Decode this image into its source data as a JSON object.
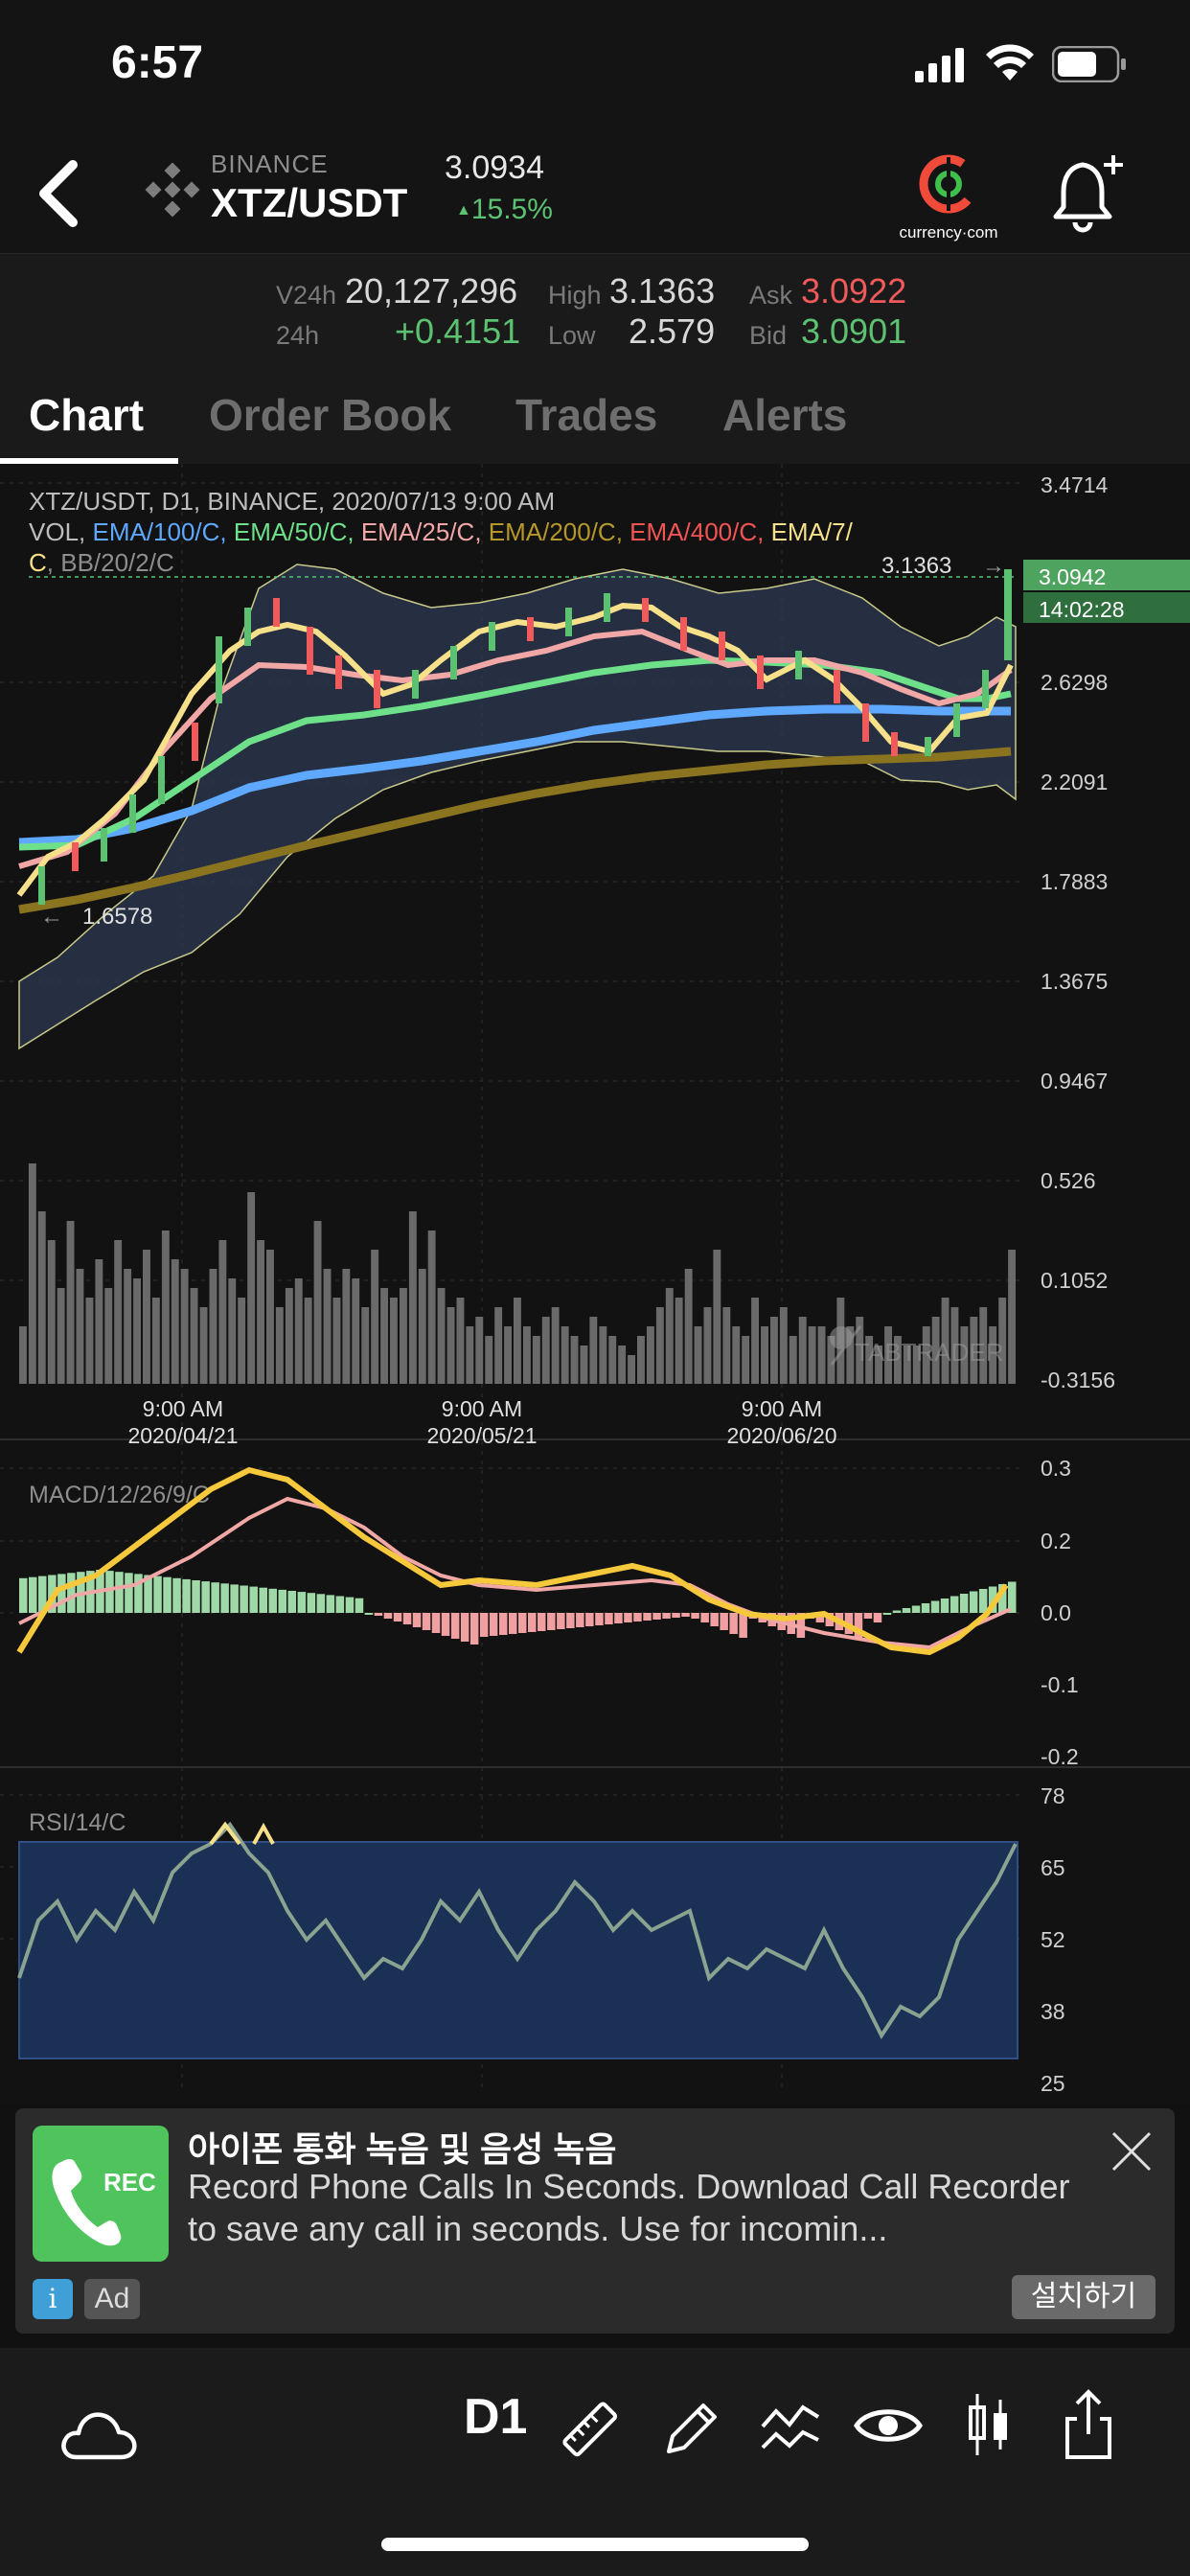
{
  "status_bar": {
    "time": "6:57"
  },
  "header": {
    "exchange": "BINANCE",
    "pair": "XTZ/USDT",
    "last_price": "3.0934",
    "change_pct": "15.5%",
    "change_arrow": "▲"
  },
  "stats": {
    "v24h_label": "V24h",
    "v24h_value": "20,127,296",
    "h24_label": "24h",
    "h24_value": "+0.4151",
    "high_label": "High",
    "high_value": "3.1363",
    "low_label": "Low",
    "low_value": "2.579",
    "ask_label": "Ask",
    "ask_value": "3.0922",
    "bid_label": "Bid",
    "bid_value": "3.0901"
  },
  "tabs": [
    "Chart",
    "Order Book",
    "Trades",
    "Alerts"
  ],
  "main_chart": {
    "legend_line1": "XTZ/USDT, D1, BINANCE, 2020/07/13 9:00 AM",
    "legend_indicators": [
      {
        "text": "VOL, ",
        "color": "#bdbdbd"
      },
      {
        "text": "EMA/100/C, ",
        "color": "#5ea8ff"
      },
      {
        "text": "EMA/50/C, ",
        "color": "#6fe08a"
      },
      {
        "text": "EMA/25/C, ",
        "color": "#f2a7a7"
      },
      {
        "text": "EMA/200/C, ",
        "color": "#b5972a"
      },
      {
        "text": "EMA/400/C, ",
        "color": "#f25454"
      },
      {
        "text": "EMA/7/",
        "color": "#f6e08a"
      }
    ],
    "legend_line3_c": "C",
    "legend_line3_rest": ", BB/20/2/C",
    "price_axis": [
      "3.4714",
      "3.0942",
      "14:02:28",
      "2.6298",
      "2.2091",
      "1.7883",
      "1.3675",
      "0.9467",
      "0.526",
      "0.1052",
      "-0.3156"
    ],
    "high_marker": "3.1363",
    "low_marker": "1.6578",
    "watermark": "TABTRADER",
    "x_ticks": [
      {
        "time": "9:00 AM",
        "date": "2020/04/21"
      },
      {
        "time": "9:00 AM",
        "date": "2020/05/21"
      },
      {
        "time": "9:00 AM",
        "date": "2020/06/20"
      }
    ]
  },
  "macd": {
    "label": "MACD/12/26/9/C",
    "axis": [
      "0.3",
      "0.2",
      "0.0",
      "-0.1",
      "-0.2"
    ]
  },
  "rsi": {
    "label": "RSI/14/C",
    "axis": [
      "78",
      "65",
      "52",
      "38",
      "25"
    ]
  },
  "ad": {
    "badge": "REC",
    "title": "아이폰 통화 녹음 및 음성 녹음",
    "description": "Record Phone Calls In Seconds. Download Call Recorder to save any call in seconds. Use for incomin...",
    "info": "i",
    "tag": "Ad",
    "install": "설치하기"
  },
  "toolbar": {
    "timeframe": "D1"
  },
  "colors": {
    "up": "#5cc272",
    "down": "#f05a5a",
    "ema100": "#5ea8ff",
    "ema50": "#6fe08a",
    "ema25": "#f2a7a7",
    "ema200": "#b5972a",
    "ema7": "#f6e08a"
  }
}
